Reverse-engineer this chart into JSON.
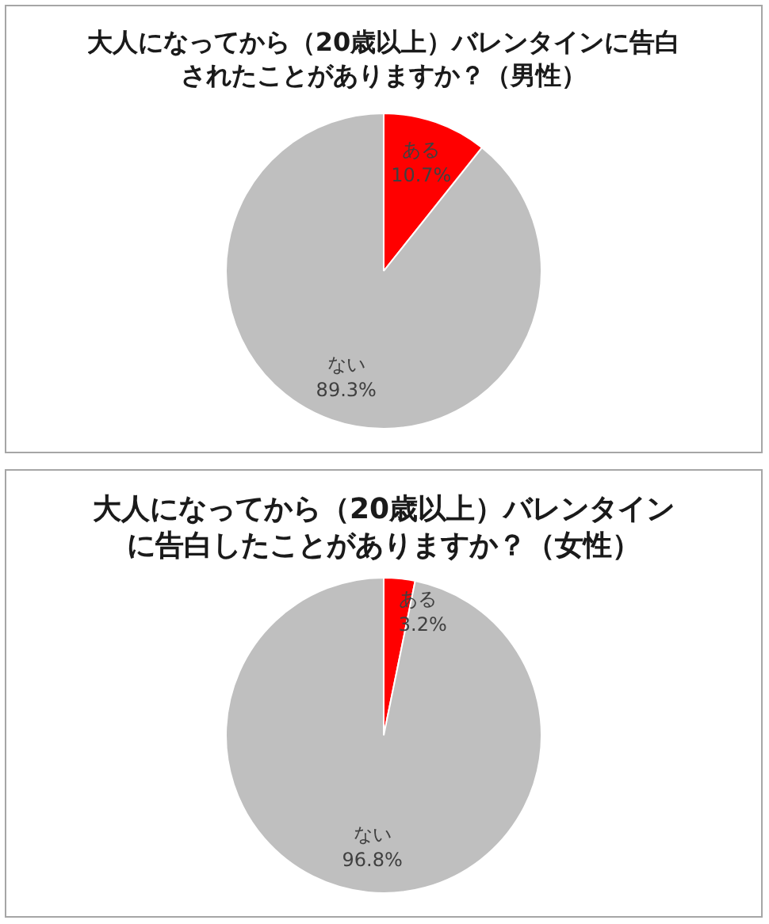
{
  "chart_data": [
    {
      "type": "pie",
      "title": "大人になってから（20歳以上）バレンタインに告白されたことがありますか？（男性）",
      "categories": [
        "ある",
        "ない"
      ],
      "values": [
        10.7,
        89.3
      ],
      "colors": [
        "#ff0000",
        "#bfbfbf"
      ],
      "value_labels": [
        "10.7%",
        "89.3%"
      ]
    },
    {
      "type": "pie",
      "title": "大人になってから（20歳以上）バレンタインに告白したことがありますか？（女性）",
      "categories": [
        "ある",
        "ない"
      ],
      "values": [
        3.2,
        96.8
      ],
      "colors": [
        "#ff0000",
        "#bfbfbf"
      ],
      "value_labels": [
        "3.2%",
        "96.8%"
      ]
    }
  ]
}
